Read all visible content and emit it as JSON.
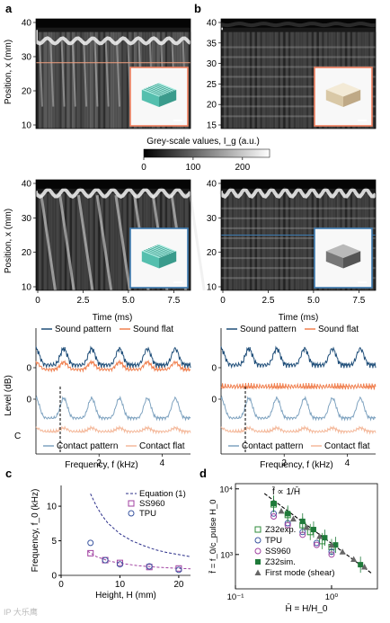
{
  "panels": {
    "a": "a",
    "b": "b",
    "c": "c",
    "d": "d"
  },
  "left_cut_letter": "C",
  "colorbar": {
    "label": "Grey-scale values, I_g (a.u.)",
    "ticks": [
      "0",
      "100",
      "200"
    ],
    "range": [
      0,
      255
    ]
  },
  "spatiotemporal": {
    "ylabel": "Position, x (mm)",
    "xlabel": "Time (ms)",
    "a_top_yticks": [
      "40",
      "30",
      "20",
      "10"
    ],
    "b_top_yticks": [
      "40",
      "35",
      "30",
      "25",
      "20",
      "15"
    ],
    "mid_yticks": [
      "40",
      "30",
      "20",
      "10"
    ],
    "xticks": [
      "0",
      "2.5",
      "5.0",
      "7.5"
    ]
  },
  "spectra": {
    "ylabel": "Level (dB)",
    "xlabel": "Frequency, f (kHz)",
    "ytick": "0",
    "xticks": [
      "2",
      "4"
    ],
    "legend_top_left": [
      "Sound pattern",
      "Sound flat"
    ],
    "legend_bottom_left": [
      "Contact pattern",
      "Contact flat"
    ],
    "legend_top_right": [
      "Sound pattern",
      "Sound flat"
    ],
    "legend_bottom_right": [
      "Contact pattern",
      "Contact flat"
    ],
    "colors": {
      "sound_pattern": "#1f4e79",
      "sound_flat": "#f08050",
      "contact_pattern": "#7fa3c0",
      "contact_flat": "#f4b89a"
    }
  },
  "chart_data": [
    {
      "id": "c",
      "type": "scatter",
      "xlabel": "Height, H (mm)",
      "ylabel": "Frequency, f_0 (kHz)",
      "xlim": [
        0,
        22
      ],
      "ylim": [
        0,
        13
      ],
      "xticks": [
        "0",
        "10",
        "20"
      ],
      "yticks": [
        "0",
        "5",
        "10"
      ],
      "legend": [
        "Equation (1)",
        "SS960",
        "TPU"
      ],
      "series": [
        {
          "name": "Equation (1)",
          "x": [
            5,
            6,
            7,
            8,
            10,
            12,
            14,
            16,
            18,
            20,
            22
          ],
          "y": [
            11.8,
            10.0,
            8.6,
            7.5,
            6.0,
            5.0,
            4.3,
            3.7,
            3.3,
            3.0,
            2.7
          ]
        },
        {
          "name": "SS960",
          "x": [
            5,
            7.5,
            10,
            15,
            20
          ],
          "y": [
            3.2,
            2.2,
            1.8,
            1.2,
            1.0
          ]
        },
        {
          "name": "TPU",
          "x": [
            5,
            7.5,
            10,
            15,
            20
          ],
          "y": [
            4.7,
            2.2,
            1.6,
            1.3,
            0.8
          ]
        }
      ]
    },
    {
      "id": "d",
      "type": "scatter",
      "xlabel": "H̄ = H/H_0",
      "ylabel": "f̄ = f_0/c_pulse H_0",
      "xscale": "log",
      "yscale": "log",
      "xlim": [
        0.1,
        3
      ],
      "ylim": [
        300,
        12000
      ],
      "xticks": [
        "10⁻¹",
        "10⁰"
      ],
      "yticks": [
        "10³",
        "10⁴"
      ],
      "annotation": "f̄ ∝ 1/H̄",
      "legend": [
        "Z32exp.",
        "TPU",
        "SS960",
        "Z32sim.",
        "First mode (shear)"
      ],
      "series": [
        {
          "name": "Z32exp.",
          "x": [
            0.25,
            0.35,
            0.5,
            0.6,
            0.8,
            1.0
          ],
          "y": [
            5800,
            4000,
            2800,
            2200,
            1600,
            1300
          ]
        },
        {
          "name": "TPU",
          "x": [
            0.25,
            0.35,
            0.5,
            0.7,
            1.0
          ],
          "y": [
            4200,
            3000,
            2200,
            1500,
            1100
          ]
        },
        {
          "name": "SS960",
          "x": [
            0.25,
            0.35,
            0.5,
            0.7,
            1.0
          ],
          "y": [
            3800,
            2800,
            2000,
            1400,
            1000
          ]
        },
        {
          "name": "Z32sim.",
          "x": [
            0.25,
            0.35,
            0.5,
            0.65,
            0.85,
            1.1,
            2.0
          ],
          "y": [
            6000,
            4200,
            3200,
            2400,
            1800,
            1400,
            700
          ]
        },
        {
          "name": "First mode (shear)",
          "x": [
            0.3,
            0.4,
            0.55,
            0.75,
            1.0,
            1.3,
            1.7,
            2.2
          ],
          "y": [
            4600,
            3500,
            2600,
            1900,
            1400,
            1100,
            850,
            650
          ]
        }
      ]
    }
  ],
  "watermark": "IP 大乐鹰"
}
